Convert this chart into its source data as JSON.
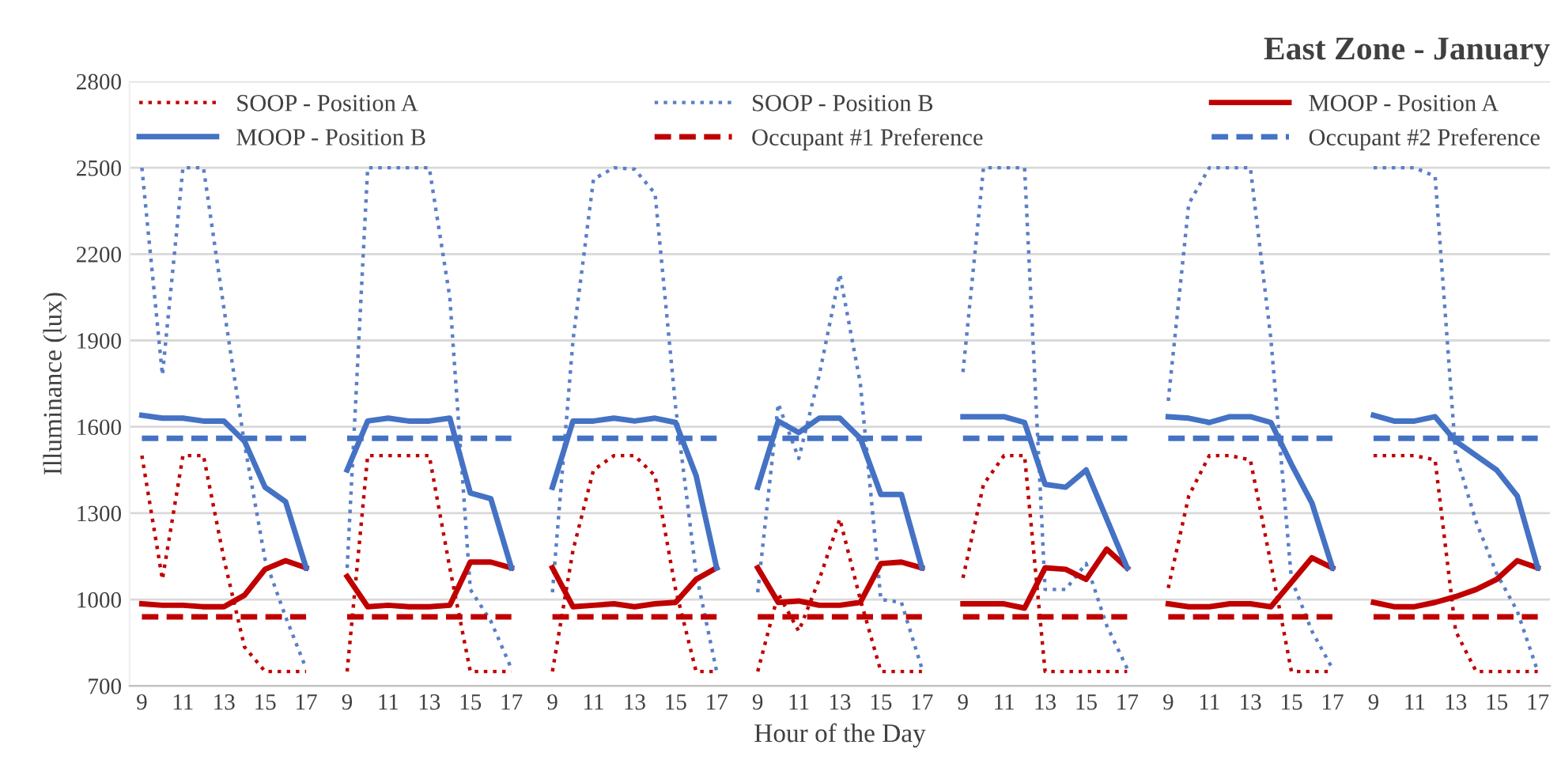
{
  "chart_data": {
    "type": "line",
    "title": "East Zone - January",
    "xlabel": "Hour of the Day",
    "ylabel": "Illuminance (lux)",
    "categories": [
      "9",
      null,
      "11",
      null,
      "13",
      null,
      "15",
      null,
      "17",
      null,
      "9",
      null,
      "11",
      null,
      "13",
      null,
      "15",
      null,
      "17",
      null,
      "9",
      null,
      "11",
      null,
      "13",
      null,
      "15",
      null,
      "17",
      null,
      "9",
      null,
      "11",
      null,
      "13",
      null,
      "15",
      null,
      "17",
      null,
      "9",
      null,
      "11",
      null,
      "13",
      null,
      "15",
      null,
      "17",
      null,
      "9",
      null,
      "11",
      null,
      "13",
      null,
      "15",
      null,
      "17",
      null,
      "9",
      null,
      "11",
      null,
      "13",
      null,
      "15",
      null,
      "17"
    ],
    "ylim": [
      700,
      2800
    ],
    "yticks": [
      700,
      1000,
      1300,
      1600,
      1900,
      2200,
      2500,
      2800
    ],
    "grid": "y",
    "legend": "top",
    "marker": "none",
    "series": [
      {
        "name": "SOOP - Position A",
        "color": "#c00000",
        "line_style": "dotted",
        "values": [
          1500,
          1070,
          1500,
          1500,
          1140,
          835,
          750,
          750,
          750,
          null,
          750,
          1500,
          1500,
          1500,
          1500,
          1110,
          750,
          750,
          750,
          null,
          750,
          1170,
          1450,
          1500,
          1500,
          1430,
          1035,
          750,
          750,
          null,
          750,
          1020,
          890,
          1070,
          1280,
          1000,
          750,
          750,
          750,
          null,
          1075,
          1400,
          1500,
          1500,
          750,
          750,
          750,
          750,
          750,
          null,
          1040,
          1360,
          1500,
          1500,
          1485,
          1125,
          750,
          750,
          750,
          null,
          1500,
          1500,
          1500,
          1485,
          890,
          750,
          750,
          750,
          750
        ]
      },
      {
        "name": "SOOP - Position B",
        "color": "#5a7fc6",
        "line_style": "dotted",
        "values": [
          2500,
          1780,
          2500,
          2500,
          2010,
          1540,
          1140,
          940,
          760,
          null,
          1110,
          2500,
          2500,
          2500,
          2500,
          2050,
          1035,
          925,
          760,
          null,
          1025,
          1900,
          2460,
          2500,
          2495,
          2410,
          1670,
          1090,
          750,
          null,
          1025,
          1680,
          1490,
          1780,
          2130,
          1750,
          1000,
          990,
          760,
          null,
          1790,
          2500,
          2500,
          2500,
          1035,
          1035,
          1125,
          910,
          760,
          null,
          1690,
          2375,
          2500,
          2500,
          2500,
          1905,
          1070,
          890,
          760,
          null,
          2500,
          2500,
          2500,
          2470,
          1505,
          1270,
          1090,
          960,
          750
        ]
      },
      {
        "name": "MOOP - Position A",
        "color": "#c00000",
        "line_style": "solid",
        "values": [
          985,
          980,
          980,
          975,
          975,
          1015,
          1105,
          1135,
          1110,
          null,
          1080,
          975,
          980,
          975,
          975,
          980,
          1130,
          1130,
          1110,
          null,
          1110,
          975,
          980,
          985,
          975,
          985,
          990,
          1070,
          1110,
          null,
          1110,
          990,
          995,
          980,
          980,
          990,
          1125,
          1130,
          1110,
          null,
          985,
          985,
          985,
          970,
          1110,
          1105,
          1070,
          1175,
          1110,
          null,
          985,
          975,
          975,
          985,
          985,
          975,
          1060,
          1145,
          1110,
          null,
          990,
          975,
          975,
          990,
          1010,
          1035,
          1070,
          1135,
          1110
        ]
      },
      {
        "name": "MOOP - Position B",
        "color": "#4472c4",
        "line_style": "solid",
        "values": [
          1640,
          1630,
          1630,
          1620,
          1620,
          1550,
          1390,
          1340,
          1110,
          null,
          1450,
          1620,
          1630,
          1620,
          1620,
          1630,
          1370,
          1350,
          1110,
          null,
          1390,
          1620,
          1620,
          1630,
          1620,
          1630,
          1615,
          1430,
          1110,
          null,
          1390,
          1620,
          1580,
          1630,
          1630,
          1560,
          1365,
          1365,
          1110,
          null,
          1635,
          1635,
          1635,
          1615,
          1400,
          1390,
          1450,
          1280,
          1110,
          null,
          1635,
          1630,
          1615,
          1635,
          1635,
          1615,
          1470,
          1335,
          1110,
          null,
          1640,
          1620,
          1620,
          1635,
          1550,
          1500,
          1450,
          1360,
          1110
        ]
      },
      {
        "name": "Occupant #1 Preference",
        "color": "#c00000",
        "line_style": "dashed",
        "values": [
          940,
          940,
          940,
          940,
          940,
          940,
          940,
          940,
          940,
          null,
          940,
          940,
          940,
          940,
          940,
          940,
          940,
          940,
          940,
          null,
          940,
          940,
          940,
          940,
          940,
          940,
          940,
          940,
          940,
          null,
          940,
          940,
          940,
          940,
          940,
          940,
          940,
          940,
          940,
          null,
          940,
          940,
          940,
          940,
          940,
          940,
          940,
          940,
          940,
          null,
          940,
          940,
          940,
          940,
          940,
          940,
          940,
          940,
          940,
          null,
          940,
          940,
          940,
          940,
          940,
          940,
          940,
          940,
          940
        ]
      },
      {
        "name": "Occupant #2 Preference",
        "color": "#4472c4",
        "line_style": "dashed",
        "values": [
          1560,
          1560,
          1560,
          1560,
          1560,
          1560,
          1560,
          1560,
          1560,
          null,
          1560,
          1560,
          1560,
          1560,
          1560,
          1560,
          1560,
          1560,
          1560,
          null,
          1560,
          1560,
          1560,
          1560,
          1560,
          1560,
          1560,
          1560,
          1560,
          null,
          1560,
          1560,
          1560,
          1560,
          1560,
          1560,
          1560,
          1560,
          1560,
          null,
          1560,
          1560,
          1560,
          1560,
          1560,
          1560,
          1560,
          1560,
          1560,
          null,
          1560,
          1560,
          1560,
          1560,
          1560,
          1560,
          1560,
          1560,
          1560,
          null,
          1560,
          1560,
          1560,
          1560,
          1560,
          1560,
          1560,
          1560,
          1560
        ]
      }
    ]
  }
}
